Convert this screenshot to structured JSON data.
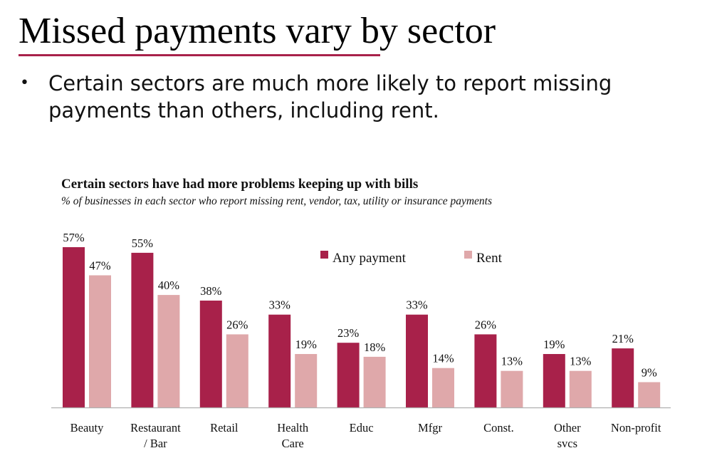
{
  "slide": {
    "title": "Missed payments vary by sector",
    "bullet": "Certain sectors are much more likely to report missing payments than others, including rent."
  },
  "colors": {
    "accent": "#a8214a",
    "any_payment": "#a8214a",
    "rent": "#dfa8aa",
    "axis": "#b0b0b0"
  },
  "chart_data": {
    "type": "bar",
    "title": "Certain sectors have had more problems keeping up with bills",
    "subtitle": "% of businesses in each sector who report missing rent, vendor, tax, utility or insurance payments",
    "categories": [
      "Beauty",
      "Restaurant / Bar",
      "Retail",
      "Health Care",
      "Educ",
      "Mfgr",
      "Const.",
      "Other svcs",
      "Non-profit"
    ],
    "series": [
      {
        "name": "Any payment",
        "values": [
          57,
          55,
          38,
          33,
          23,
          33,
          26,
          19,
          21
        ],
        "color": "#a8214a"
      },
      {
        "name": "Rent",
        "values": [
          47,
          40,
          26,
          19,
          18,
          14,
          13,
          13,
          9
        ],
        "color": "#dfa8aa"
      }
    ],
    "value_suffix": "%",
    "ylim": [
      0,
      57
    ],
    "grid": false,
    "legend": "top-center"
  }
}
